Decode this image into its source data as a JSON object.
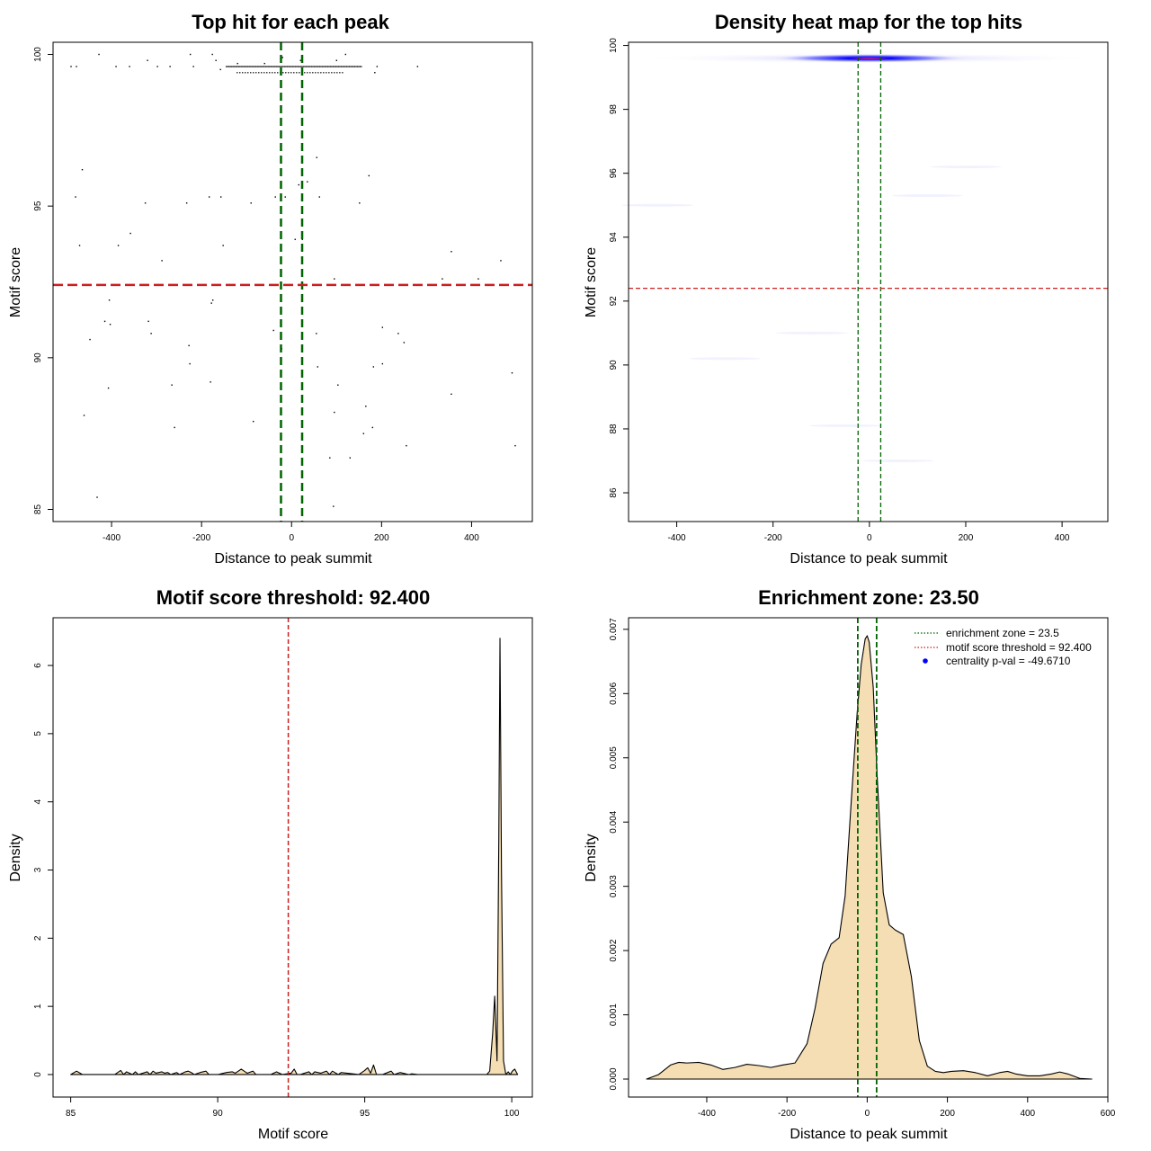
{
  "colors": {
    "green_line": "#006400",
    "red_line": "#cc1f1f",
    "density_fill": "#f5deb3",
    "heat_blue": "#0000ff",
    "heat_red": "#d21a6a",
    "points": "#000000",
    "legend_dot": "#0000ff"
  },
  "chart_data": [
    {
      "id": "scatter",
      "type": "scatter",
      "title": "Top hit for each peak",
      "xlabel": "Distance to peak summit",
      "ylabel": "Motif score",
      "xlim": [
        -530,
        535
      ],
      "ylim": [
        84.6,
        100.4
      ],
      "xticks": [
        -400,
        -200,
        0,
        200,
        400
      ],
      "yticks": [
        85,
        90,
        95,
        100
      ],
      "vlines": [
        -23.5,
        23.5
      ],
      "hline": 92.4,
      "cluster": {
        "x_range": [
          -145,
          155
        ],
        "y_values": [
          99.6,
          99.4
        ]
      },
      "points": [
        [
          -490,
          99.6
        ],
        [
          -478,
          99.6
        ],
        [
          -428,
          100.0
        ],
        [
          -390,
          99.6
        ],
        [
          -360,
          99.6
        ],
        [
          -320,
          99.8
        ],
        [
          -298,
          99.6
        ],
        [
          -270,
          99.6
        ],
        [
          -225,
          100.0
        ],
        [
          -218,
          99.6
        ],
        [
          -176,
          100.0
        ],
        [
          -168,
          99.8
        ],
        [
          -158,
          99.5
        ],
        [
          -120,
          99.7
        ],
        [
          -60,
          99.7
        ],
        [
          20,
          99.8
        ],
        [
          100,
          99.8
        ],
        [
          120,
          100.0
        ],
        [
          190,
          99.6
        ],
        [
          280,
          99.6
        ],
        [
          185,
          99.4
        ],
        [
          -20,
          99.9
        ],
        [
          -465,
          96.2
        ],
        [
          -480,
          95.3
        ],
        [
          -325,
          95.1
        ],
        [
          -233,
          95.1
        ],
        [
          -183,
          95.3
        ],
        [
          -157,
          95.3
        ],
        [
          -90,
          95.1
        ],
        [
          -36,
          95.3
        ],
        [
          -14,
          95.3
        ],
        [
          16,
          95.7
        ],
        [
          35,
          95.8
        ],
        [
          56,
          96.6
        ],
        [
          62,
          95.3
        ],
        [
          151,
          95.1
        ],
        [
          172,
          96.0
        ],
        [
          -471,
          93.7
        ],
        [
          -385,
          93.7
        ],
        [
          -358,
          94.1
        ],
        [
          -288,
          93.2
        ],
        [
          -152,
          93.7
        ],
        [
          8,
          93.9
        ],
        [
          24,
          93.9
        ],
        [
          355,
          93.5
        ],
        [
          465,
          93.2
        ],
        [
          335,
          92.6
        ],
        [
          415,
          92.6
        ],
        [
          95,
          92.6
        ],
        [
          -405,
          91.9
        ],
        [
          -415,
          91.2
        ],
        [
          -403,
          91.1
        ],
        [
          -318,
          91.2
        ],
        [
          -312,
          90.8
        ],
        [
          -178,
          91.8
        ],
        [
          -175,
          91.9
        ],
        [
          -448,
          90.6
        ],
        [
          -228,
          90.4
        ],
        [
          -226,
          89.8
        ],
        [
          -40,
          90.9
        ],
        [
          -22,
          90.3
        ],
        [
          55,
          90.8
        ],
        [
          202,
          91.0
        ],
        [
          237,
          90.8
        ],
        [
          250,
          90.5
        ],
        [
          58,
          89.7
        ],
        [
          182,
          89.7
        ],
        [
          202,
          89.8
        ],
        [
          -407,
          89.0
        ],
        [
          -266,
          89.1
        ],
        [
          -180,
          89.2
        ],
        [
          103,
          89.1
        ],
        [
          355,
          88.8
        ],
        [
          490,
          89.5
        ],
        [
          -461,
          88.1
        ],
        [
          -260,
          87.7
        ],
        [
          -85,
          87.9
        ],
        [
          95,
          88.2
        ],
        [
          165,
          88.4
        ],
        [
          180,
          87.7
        ],
        [
          160,
          87.5
        ],
        [
          255,
          87.1
        ],
        [
          85,
          86.7
        ],
        [
          130,
          86.7
        ],
        [
          497,
          87.1
        ],
        [
          -432,
          85.4
        ],
        [
          93,
          85.1
        ]
      ]
    },
    {
      "id": "heatmap",
      "type": "heatmap",
      "title": "Density heat map for the top hits",
      "xlabel": "Distance to peak summit",
      "ylabel": "Motif score",
      "xlim": [
        -500,
        495
      ],
      "ylim": [
        85.1,
        100.1
      ],
      "xticks": [
        -400,
        -200,
        0,
        200,
        400
      ],
      "yticks": [
        86,
        88,
        90,
        92,
        94,
        96,
        98,
        100
      ],
      "vlines": [
        -23.5,
        23.5
      ],
      "hline": 92.4,
      "hotspot": {
        "x": 0,
        "y": 99.6
      }
    },
    {
      "id": "score_density",
      "type": "area",
      "title": "Motif score threshold: 92.400",
      "xlabel": "Motif score",
      "ylabel": "Density",
      "xlim": [
        84.4,
        100.7
      ],
      "ylim": [
        -0.33,
        6.7
      ],
      "xticks": [
        85,
        90,
        95,
        100
      ],
      "yticks": [
        0,
        1,
        2,
        3,
        4,
        5,
        6
      ],
      "vline": 92.4,
      "x": [
        85.0,
        85.2,
        85.4,
        86.0,
        86.5,
        86.7,
        86.8,
        86.9,
        87.1,
        87.2,
        87.3,
        87.6,
        87.7,
        87.8,
        87.9,
        88.1,
        88.2,
        88.3,
        88.4,
        88.6,
        88.7,
        88.9,
        89.0,
        89.1,
        89.2,
        89.4,
        89.6,
        89.7,
        89.8,
        90.0,
        90.3,
        90.5,
        90.6,
        90.8,
        90.9,
        91.0,
        91.2,
        91.3,
        91.8,
        92.0,
        92.2,
        92.5,
        92.6,
        92.7,
        92.8,
        93.1,
        93.2,
        93.3,
        93.5,
        93.7,
        93.8,
        93.9,
        94.1,
        94.2,
        94.8,
        95.0,
        95.1,
        95.2,
        95.3,
        95.4,
        95.6,
        95.9,
        96.0,
        96.2,
        96.5,
        96.6,
        96.8,
        99.15,
        99.25,
        99.35,
        99.42,
        99.5,
        99.56,
        99.6,
        99.65,
        99.72,
        99.8,
        99.88,
        99.95,
        100.02,
        100.1,
        100.2
      ],
      "y": [
        0.0,
        0.05,
        0.0,
        0.0,
        0.0,
        0.06,
        0.0,
        0.04,
        0.0,
        0.04,
        0.0,
        0.04,
        0.0,
        0.05,
        0.02,
        0.04,
        0.02,
        0.03,
        0.0,
        0.03,
        0.0,
        0.04,
        0.05,
        0.03,
        0.0,
        0.03,
        0.05,
        0.0,
        0.0,
        0.0,
        0.03,
        0.04,
        0.02,
        0.08,
        0.05,
        0.02,
        0.05,
        0.0,
        0.0,
        0.04,
        0.0,
        0.02,
        0.08,
        0.0,
        0.0,
        0.04,
        0.0,
        0.04,
        0.02,
        0.05,
        0.0,
        0.05,
        0.0,
        0.03,
        0.0,
        0.06,
        0.1,
        0.02,
        0.14,
        0.0,
        0.0,
        0.05,
        0.0,
        0.03,
        0.0,
        0.01,
        0.0,
        0.0,
        0.05,
        0.6,
        1.15,
        0.2,
        3.5,
        6.4,
        3.0,
        0.2,
        0.0,
        0.04,
        0.0,
        0.05,
        0.08,
        0.0
      ]
    },
    {
      "id": "distance_density",
      "type": "area",
      "title": "Enrichment zone: 23.50",
      "xlabel": "Distance to peak summit",
      "ylabel": "Density",
      "xlim": [
        -595,
        600
      ],
      "ylim": [
        -0.00028,
        0.00718
      ],
      "xticks": [
        -400,
        -200,
        0,
        200,
        400,
        600
      ],
      "yticks": [
        0.0,
        0.001,
        0.002,
        0.003,
        0.004,
        0.005,
        0.006,
        0.007
      ],
      "ytick_labels": [
        "0.000",
        "0.001",
        "0.002",
        "0.003",
        "0.004",
        "0.005",
        "0.006",
        "0.007"
      ],
      "vlines": [
        -23.5,
        23.5
      ],
      "x": [
        -550,
        -520,
        -490,
        -470,
        -450,
        -420,
        -390,
        -360,
        -330,
        -300,
        -270,
        -240,
        -210,
        -180,
        -150,
        -130,
        -110,
        -90,
        -70,
        -55,
        -40,
        -25,
        -15,
        -5,
        0,
        5,
        15,
        25,
        40,
        55,
        70,
        90,
        110,
        130,
        150,
        170,
        190,
        210,
        240,
        270,
        300,
        330,
        350,
        370,
        400,
        430,
        460,
        480,
        500,
        530,
        560
      ],
      "y": [
        0.0,
        7e-05,
        0.00022,
        0.00026,
        0.00025,
        0.00026,
        0.00022,
        0.00015,
        0.00018,
        0.00023,
        0.00021,
        0.00018,
        0.00022,
        0.00025,
        0.00055,
        0.0011,
        0.0018,
        0.0021,
        0.0022,
        0.00285,
        0.0043,
        0.0057,
        0.00645,
        0.00685,
        0.0069,
        0.0068,
        0.0061,
        0.0047,
        0.0029,
        0.0024,
        0.00232,
        0.00225,
        0.0016,
        0.0006,
        0.0002,
        0.00012,
        0.0001,
        0.00012,
        0.00013,
        0.0001,
        5e-05,
        0.0001,
        0.00012,
        8e-05,
        5e-05,
        5e-05,
        8e-05,
        0.00011,
        8e-05,
        1e-05,
        0.0
      ],
      "legend": {
        "position": "top-right",
        "entries": [
          {
            "label": "enrichment zone = 23.5",
            "style": "dotted",
            "color": "#006400"
          },
          {
            "label": "motif score threshold = 92.400",
            "style": "dotted",
            "color": "#cc1f1f"
          },
          {
            "label": "centrality p-val = -49.6710",
            "style": "dot",
            "color": "#0000ff"
          }
        ]
      }
    }
  ]
}
